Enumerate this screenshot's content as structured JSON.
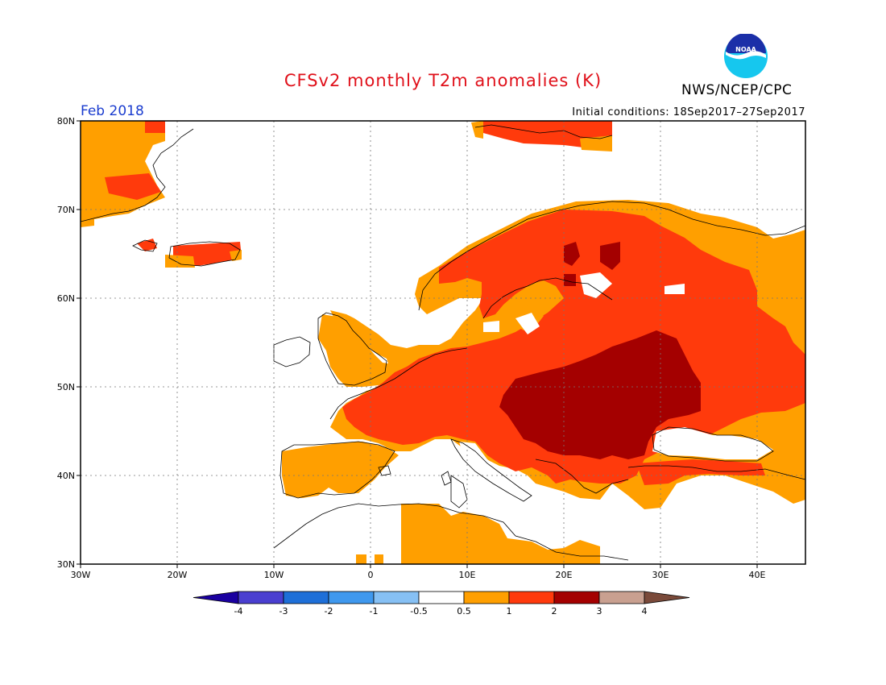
{
  "header": {
    "title": "CFSv2 monthly T2m anomalies (K)",
    "month": "Feb 2018",
    "initial_conditions": "Initial conditions: 18Sep2017–27Sep2017",
    "agency": "NWS/NCEP/CPC",
    "logo_text": "NOAA"
  },
  "axes": {
    "lat_labels": [
      "80N",
      "70N",
      "60N",
      "50N",
      "40N",
      "30N"
    ],
    "lon_labels": [
      "30W",
      "20W",
      "10W",
      "0",
      "10E",
      "20E",
      "30E",
      "40E"
    ]
  },
  "legend": {
    "labels": [
      "-4",
      "-3",
      "-2",
      "-1",
      "-0.5",
      "0.5",
      "1",
      "2",
      "3",
      "4"
    ],
    "colors": [
      "#1a00a0",
      "#4a3fd0",
      "#1e6fd8",
      "#3f98ee",
      "#86c0f4",
      "#ffffff",
      "#ff9f00",
      "#ff3a0c",
      "#a40000",
      "#c9a090",
      "#7a4a3a"
    ]
  },
  "anomaly_colors": {
    "0.5-1": "#ff9f00",
    "1-2": "#ff3a0c",
    "2-3": "#a40000"
  }
}
